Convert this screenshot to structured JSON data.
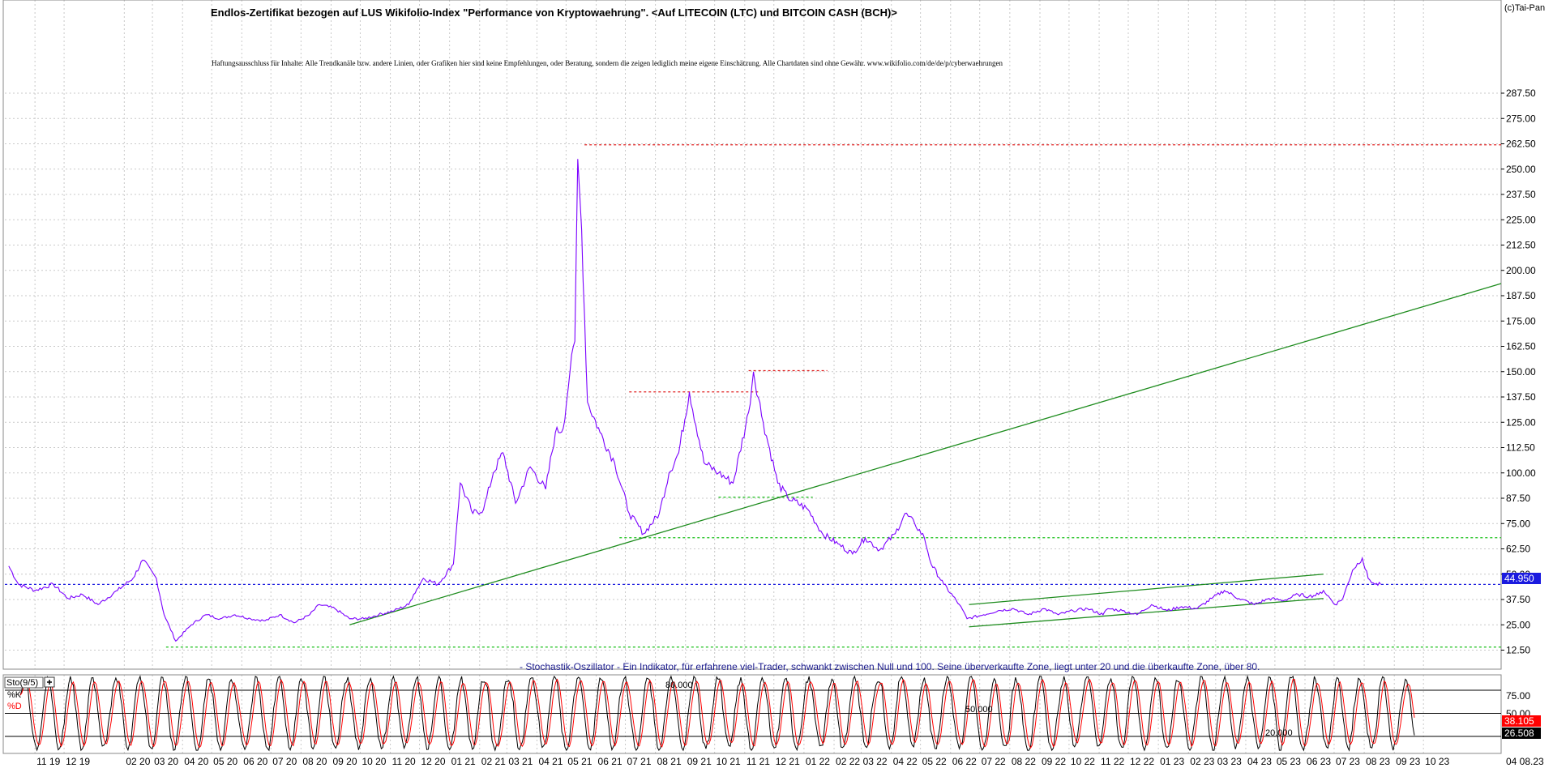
{
  "app": {
    "copyright": "(c)Tai-Pan"
  },
  "chart_data": {
    "type": "line",
    "title": "Endlos-Zertifikat bezogen auf LUS Wikifolio-Index \"Performance von Kryptowaehrung\". <Auf LITECOIN (LTC) und BITCOIN CASH (BCH)>",
    "subtitle": "Haftungsausschluss für Inhalte: Alle Trendkanäle bzw. andere Linien, oder Grafiken hier sind keine Empfehlungen, oder Beratung, sondern die zeigen lediglich meine eigene Einschätzung. Alle Chartdaten sind ohne Gewähr.  www.wikifolio.com/de/de/p/cyberwaehrungen",
    "ylim": [
      0,
      300
    ],
    "y_ticks": [
      "287.50",
      "275.00",
      "262.50",
      "250.00",
      "237.50",
      "225.00",
      "212.50",
      "200.00",
      "187.50",
      "175.00",
      "162.50",
      "150.00",
      "137.50",
      "125.00",
      "112.50",
      "100.00",
      "87.50",
      "75.00",
      "62.50",
      "50.00",
      "37.50",
      "25.00",
      "12.50"
    ],
    "x_ticks": [
      "11 19",
      "12 19",
      "02 20",
      "03 20",
      "04 20",
      "05 20",
      "06 20",
      "07 20",
      "08 20",
      "09 20",
      "10 20",
      "11 20",
      "12 20",
      "01 21",
      "02 21",
      "03 21",
      "04 21",
      "05 21",
      "06 21",
      "07 21",
      "08 21",
      "09 21",
      "10 21",
      "11 21",
      "12 21",
      "01 22",
      "02 22",
      "03 22",
      "04 22",
      "05 22",
      "06 22",
      "07 22",
      "08 22",
      "09 22",
      "10 22",
      "11 22",
      "12 22",
      "01 23",
      "02 23",
      "03 23",
      "04 23",
      "05 23",
      "06 23",
      "07 23",
      "08 23",
      "09 23",
      "10 23",
      "04 08.23"
    ],
    "series": [
      {
        "color": "#7b00ff",
        "x": [
          "2019-10-05",
          "2019-10-15",
          "2019-11-01",
          "2019-11-20",
          "2019-12-05",
          "2019-12-20",
          "2020-01-05",
          "2020-01-25",
          "2020-02-10",
          "2020-02-20",
          "2020-03-05",
          "2020-03-13",
          "2020-03-25",
          "2020-04-10",
          "2020-04-25",
          "2020-05-10",
          "2020-05-25",
          "2020-06-10",
          "2020-06-25",
          "2020-07-10",
          "2020-07-25",
          "2020-08-10",
          "2020-08-20",
          "2020-09-05",
          "2020-09-20",
          "2020-10-05",
          "2020-10-20",
          "2020-11-05",
          "2020-11-20",
          "2020-11-25",
          "2020-12-05",
          "2020-12-20",
          "2021-01-05",
          "2021-01-12",
          "2021-01-25",
          "2021-02-05",
          "2021-02-15",
          "2021-02-25",
          "2021-03-10",
          "2021-03-25",
          "2021-04-10",
          "2021-04-20",
          "2021-04-28",
          "2021-05-05",
          "2021-05-10",
          "2021-05-13",
          "2021-05-17",
          "2021-05-23",
          "2021-06-05",
          "2021-06-20",
          "2021-07-05",
          "2021-07-20",
          "2021-08-05",
          "2021-08-15",
          "2021-08-25",
          "2021-09-05",
          "2021-09-20",
          "2021-10-05",
          "2021-10-20",
          "2021-11-05",
          "2021-11-10",
          "2021-11-20",
          "2021-12-05",
          "2021-12-15",
          "2022-01-05",
          "2022-01-20",
          "2022-02-05",
          "2022-02-20",
          "2022-03-05",
          "2022-03-20",
          "2022-04-05",
          "2022-04-15",
          "2022-04-25",
          "2022-05-05",
          "2022-05-12",
          "2022-05-25",
          "2022-06-10",
          "2022-06-18",
          "2022-07-05",
          "2022-07-20",
          "2022-08-05",
          "2022-08-20",
          "2022-09-05",
          "2022-09-20",
          "2022-10-05",
          "2022-10-20",
          "2022-11-05",
          "2022-11-10",
          "2022-11-25",
          "2022-12-10",
          "2022-12-25",
          "2023-01-10",
          "2023-01-25",
          "2023-02-10",
          "2023-02-25",
          "2023-03-10",
          "2023-03-25",
          "2023-04-10",
          "2023-04-25",
          "2023-05-10",
          "2023-05-25",
          "2023-06-05",
          "2023-06-15",
          "2023-06-20",
          "2023-07-02",
          "2023-07-10",
          "2023-07-20",
          "2023-07-30",
          "2023-08-05",
          "2023-08-12",
          "2023-08-18"
        ],
        "y": [
          54,
          45,
          42,
          45,
          38,
          40,
          35,
          42,
          48,
          57,
          48,
          30,
          17,
          25,
          30,
          28,
          30,
          28,
          27,
          30,
          26,
          30,
          35,
          33,
          28,
          28,
          30,
          32,
          35,
          40,
          48,
          45,
          55,
          95,
          80,
          82,
          100,
          110,
          85,
          103,
          92,
          120,
          122,
          150,
          165,
          255,
          220,
          135,
          120,
          105,
          80,
          70,
          80,
          100,
          110,
          140,
          105,
          100,
          95,
          130,
          150,
          125,
          95,
          88,
          82,
          70,
          65,
          60,
          68,
          62,
          70,
          80,
          75,
          68,
          55,
          45,
          35,
          28,
          30,
          32,
          33,
          30,
          33,
          30,
          32,
          33,
          30,
          33,
          32,
          30,
          35,
          32,
          34,
          33,
          38,
          42,
          38,
          35,
          38,
          37,
          40,
          39,
          40,
          42,
          35,
          38,
          52,
          58,
          48,
          45,
          44.95
        ]
      },
      {
        "name": "Sto(9/5)",
        "label": "%K",
        "color": "#000000"
      },
      {
        "name": "Sto(9/5)",
        "label": "%D",
        "color": "#ff0000"
      }
    ],
    "last_value": "44.950",
    "trendlines_color": "#1e8c1e",
    "oscillator": {
      "name": "Sto(9/5)",
      "k_label": "%K",
      "d_label": "%D",
      "caption": "- Stochastik-Oszillator - Ein Indikator, für erfahrene viel-Trader, schwankt zwischen Null und 100. Seine überverkaufte Zone, liegt unter 20 und die überkaufte Zone, über 80.",
      "y_ticks": [
        "75.00",
        "50.00"
      ],
      "level_labels": [
        "80.000",
        "50.000",
        "20.000"
      ],
      "k_value": "38.105",
      "d_value": "26.508"
    }
  }
}
